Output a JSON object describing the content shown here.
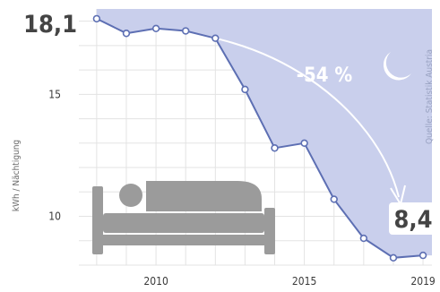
{
  "chart_data": {
    "type": "area",
    "x": [
      2008,
      2009,
      2010,
      2011,
      2012,
      2013,
      2014,
      2015,
      2016,
      2017,
      2018,
      2019
    ],
    "values": [
      18.1,
      17.5,
      17.7,
      17.6,
      17.3,
      15.2,
      12.8,
      13.0,
      10.7,
      9.1,
      8.3,
      8.4
    ],
    "ylabel": "kWh / Nächtigung",
    "xticks": [
      "2010",
      "2015",
      "2019"
    ],
    "yticks": [
      "10",
      "15"
    ],
    "xlim": [
      2007.4,
      2019.3
    ],
    "ylim": [
      8.0,
      18.5
    ],
    "grid": true,
    "annotations": {
      "start": "18,1",
      "end": "8,4",
      "change": "-54 %"
    },
    "source": "Quelle: Statistik Austria",
    "colors": {
      "area": "#c9cfec",
      "line": "#5d6fb3",
      "grid": "#e3e3e3",
      "bed": "#9b9b9b",
      "moon": "#ffffff",
      "text": "#444444"
    },
    "icons": [
      "bed-icon",
      "moon-icon"
    ]
  }
}
